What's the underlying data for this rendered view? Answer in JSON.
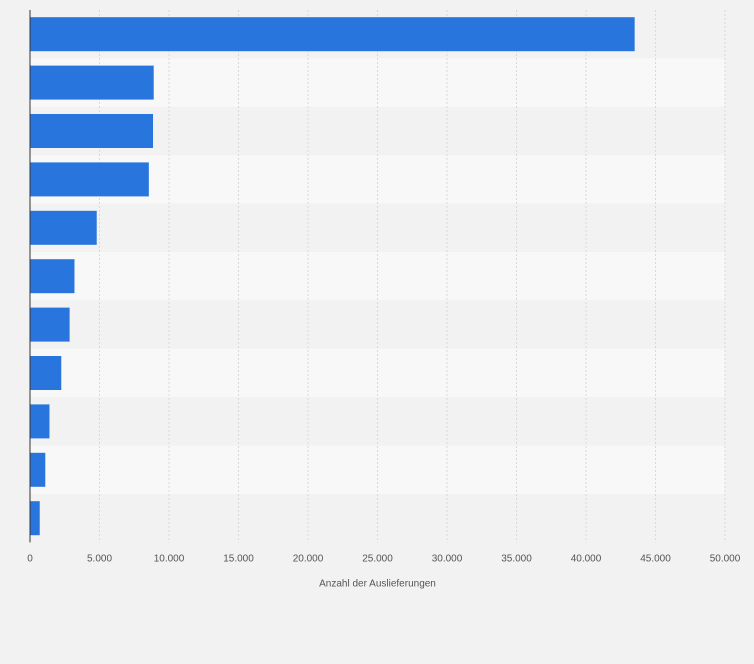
{
  "chart_data": {
    "type": "bar",
    "orientation": "horizontal",
    "title": "",
    "xlabel": "Anzahl der Auslieferungen",
    "ylabel": "",
    "categories": [
      "",
      "",
      "",
      "",
      "",
      "",
      "",
      "",
      "",
      "",
      ""
    ],
    "series": [
      {
        "values": [
          43500,
          8900,
          8850,
          8550,
          4800,
          3200,
          2850,
          2250,
          1400,
          1100,
          700
        ]
      }
    ],
    "xlim": [
      0,
      50000
    ],
    "ticks": [
      0,
      5000,
      10000,
      15000,
      20000,
      25000,
      30000,
      35000,
      40000,
      45000,
      50000
    ],
    "tick_labels": [
      "0",
      "5.000",
      "10.000",
      "15.000",
      "20.000",
      "25.000",
      "30.000",
      "35.000",
      "40.000",
      "45.000",
      "50.000"
    ],
    "grid": true,
    "legend": "none",
    "colors": {
      "bar": "#2876dd",
      "band_dark": "#f2f2f2",
      "band_light": "#f8f8f8",
      "grid": "#d9d9d9",
      "axis": "#333333",
      "tick_text": "#555555",
      "background": "#f2f2f2"
    }
  }
}
